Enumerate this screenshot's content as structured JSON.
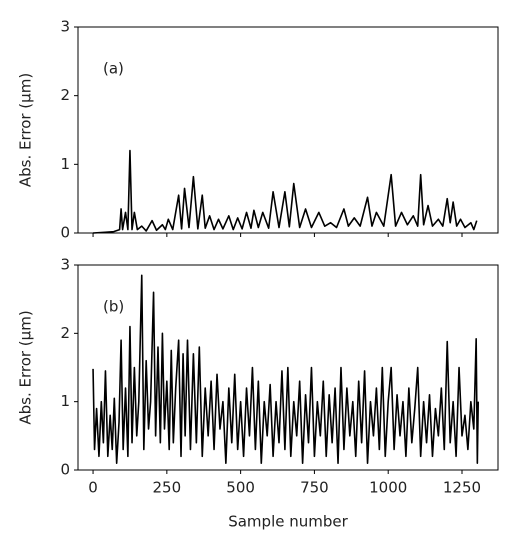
{
  "chart_data": [
    {
      "type": "line",
      "annotation": "(a)",
      "ylabel": "Abs. Error (μm)",
      "xlim": [
        -51,
        1372
      ],
      "ylim": [
        0,
        3
      ],
      "yticks": [
        0,
        1,
        2,
        3
      ],
      "series": [
        {
          "color": "#000000",
          "x": [
            0,
            40,
            70,
            90,
            95,
            100,
            110,
            118,
            125,
            132,
            140,
            150,
            165,
            180,
            200,
            215,
            235,
            245,
            255,
            270,
            290,
            300,
            310,
            325,
            340,
            355,
            370,
            380,
            395,
            410,
            425,
            440,
            460,
            475,
            490,
            505,
            520,
            535,
            545,
            560,
            575,
            595,
            610,
            630,
            650,
            665,
            680,
            700,
            720,
            740,
            765,
            785,
            805,
            825,
            850,
            865,
            885,
            905,
            930,
            945,
            960,
            985,
            1010,
            1025,
            1045,
            1065,
            1085,
            1100,
            1110,
            1120,
            1135,
            1150,
            1170,
            1185,
            1200,
            1210,
            1220,
            1232,
            1245,
            1260,
            1280,
            1290,
            1300
          ],
          "values": [
            0,
            0.01,
            0.02,
            0.05,
            0.35,
            0.05,
            0.3,
            0.05,
            1.2,
            0.05,
            0.3,
            0.05,
            0.1,
            0.03,
            0.18,
            0.04,
            0.12,
            0.05,
            0.2,
            0.05,
            0.55,
            0.06,
            0.65,
            0.08,
            0.82,
            0.06,
            0.55,
            0.07,
            0.25,
            0.05,
            0.2,
            0.06,
            0.25,
            0.05,
            0.22,
            0.06,
            0.3,
            0.07,
            0.33,
            0.08,
            0.3,
            0.07,
            0.6,
            0.08,
            0.6,
            0.09,
            0.72,
            0.08,
            0.35,
            0.08,
            0.3,
            0.1,
            0.15,
            0.08,
            0.35,
            0.1,
            0.22,
            0.1,
            0.52,
            0.1,
            0.3,
            0.1,
            0.85,
            0.1,
            0.3,
            0.12,
            0.25,
            0.1,
            0.85,
            0.12,
            0.4,
            0.1,
            0.2,
            0.1,
            0.5,
            0.15,
            0.45,
            0.1,
            0.2,
            0.08,
            0.15,
            0.05,
            0.18
          ]
        }
      ]
    },
    {
      "type": "line",
      "annotation": "(b)",
      "ylabel": "Abs. Error (μm)",
      "xlabel": "Sample number",
      "xlim": [
        -51,
        1372
      ],
      "xticks": [
        0,
        250,
        500,
        750,
        1000,
        1250
      ],
      "ylim": [
        0,
        3
      ],
      "yticks": [
        0,
        1,
        2,
        3
      ],
      "series": [
        {
          "color": "#000000",
          "x": [
            0,
            5,
            12,
            20,
            28,
            35,
            42,
            50,
            58,
            65,
            72,
            80,
            88,
            95,
            102,
            110,
            118,
            125,
            132,
            140,
            148,
            155,
            165,
            172,
            180,
            188,
            195,
            205,
            212,
            220,
            228,
            235,
            242,
            250,
            258,
            265,
            272,
            280,
            290,
            298,
            305,
            312,
            320,
            330,
            340,
            350,
            360,
            370,
            380,
            390,
            400,
            410,
            420,
            430,
            440,
            450,
            460,
            470,
            480,
            490,
            500,
            510,
            520,
            530,
            540,
            550,
            560,
            570,
            580,
            590,
            600,
            610,
            620,
            630,
            640,
            650,
            660,
            670,
            680,
            690,
            700,
            710,
            720,
            730,
            740,
            750,
            760,
            770,
            780,
            790,
            800,
            810,
            820,
            830,
            840,
            850,
            860,
            870,
            880,
            890,
            900,
            910,
            920,
            930,
            940,
            950,
            960,
            970,
            980,
            990,
            1000,
            1010,
            1020,
            1030,
            1040,
            1050,
            1060,
            1070,
            1080,
            1090,
            1100,
            1110,
            1120,
            1130,
            1140,
            1150,
            1160,
            1170,
            1180,
            1190,
            1200,
            1210,
            1220,
            1230,
            1240,
            1250,
            1260,
            1270,
            1280,
            1290,
            1298,
            1302,
            1305
          ],
          "values": [
            1.48,
            0.3,
            0.9,
            0.2,
            1.0,
            0.4,
            1.45,
            0.2,
            0.8,
            0.3,
            1.05,
            0.1,
            0.7,
            1.9,
            0.3,
            1.2,
            0.2,
            2.1,
            0.4,
            1.5,
            0.5,
            1.0,
            2.85,
            0.3,
            1.6,
            0.6,
            1.0,
            2.6,
            0.5,
            1.8,
            0.4,
            2.0,
            0.6,
            1.3,
            0.3,
            1.75,
            0.4,
            1.2,
            1.9,
            0.2,
            1.7,
            0.5,
            1.9,
            0.3,
            1.7,
            0.4,
            1.8,
            0.2,
            1.2,
            0.5,
            1.3,
            0.3,
            1.4,
            0.6,
            1.0,
            0.1,
            1.2,
            0.4,
            1.4,
            0.3,
            1.0,
            0.2,
            1.2,
            0.5,
            1.5,
            0.3,
            1.3,
            0.1,
            1.0,
            0.5,
            1.25,
            0.2,
            1.0,
            0.4,
            1.45,
            0.3,
            1.5,
            0.2,
            1.0,
            0.5,
            1.3,
            0.1,
            1.1,
            0.4,
            1.5,
            0.2,
            1.0,
            0.5,
            1.3,
            0.2,
            1.1,
            0.4,
            1.2,
            0.1,
            1.5,
            0.3,
            1.2,
            0.5,
            1.0,
            0.2,
            1.3,
            0.4,
            1.45,
            0.1,
            1.0,
            0.5,
            1.2,
            0.3,
            1.5,
            0.2,
            1.0,
            1.5,
            0.3,
            1.1,
            0.5,
            1.0,
            0.2,
            1.2,
            0.4,
            0.9,
            1.5,
            0.2,
            1.0,
            0.4,
            1.1,
            0.2,
            0.9,
            0.5,
            1.2,
            0.3,
            1.88,
            0.4,
            1.0,
            0.2,
            1.5,
            0.5,
            0.8,
            0.3,
            1.0,
            0.6,
            1.92,
            0.1,
            1.0
          ]
        }
      ]
    }
  ]
}
